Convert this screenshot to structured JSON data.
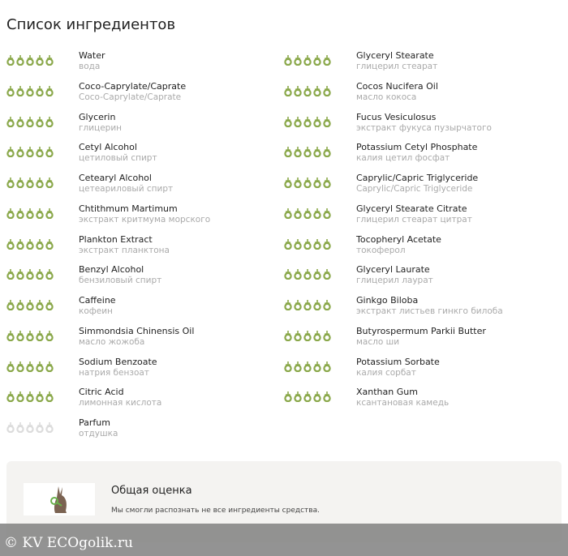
{
  "title": "Список ингредиентов",
  "colors": {
    "good": "#8aa84a",
    "unknown": "#dcdcdc"
  },
  "icon": "acorn-rating-icon",
  "left": [
    {
      "en": "Water",
      "ru": "вода",
      "rating": 5
    },
    {
      "en": "Coco-Caprylate/Caprate",
      "ru": "Coco-Caprylate/Caprate",
      "rating": 5
    },
    {
      "en": "Glycerin",
      "ru": "глицерин",
      "rating": 5
    },
    {
      "en": "Cetyl Alcohol",
      "ru": "цетиловый спирт",
      "rating": 5
    },
    {
      "en": "Cetearyl Alcohol",
      "ru": "цетеариловый спирт",
      "rating": 5
    },
    {
      "en": "Chtithmum Martimum",
      "ru": "экстракт критмума морского",
      "rating": 5
    },
    {
      "en": "Plankton Extract",
      "ru": "экстракт планктона",
      "rating": 5
    },
    {
      "en": "Benzyl Alcohol",
      "ru": "бензиловый спирт",
      "rating": 5
    },
    {
      "en": "Caffeine",
      "ru": "кофеин",
      "rating": 5
    },
    {
      "en": "Simmondsia Chinensis Oil",
      "ru": "масло жожоба",
      "rating": 5
    },
    {
      "en": "Sodium Benzoate",
      "ru": "натрия бензоат",
      "rating": 5
    },
    {
      "en": "Citric Acid",
      "ru": "лимонная кислота",
      "rating": 5
    },
    {
      "en": "Parfum",
      "ru": "отдушка",
      "rating": 0
    }
  ],
  "right": [
    {
      "en": "Glyceryl Stearate",
      "ru": "глицерил стеарат",
      "rating": 5
    },
    {
      "en": "Cocos Nucifera Oil",
      "ru": "масло кокоса",
      "rating": 5
    },
    {
      "en": "Fucus Vesiculosus",
      "ru": "экстракт фукуса пузырчатого",
      "rating": 5
    },
    {
      "en": "Potassium Cetyl Phosphate",
      "ru": "калия цетил фосфат",
      "rating": 5
    },
    {
      "en": "Caprylic/Capric Triglyceride",
      "ru": "Caprylic/Capric Triglyceride",
      "rating": 5
    },
    {
      "en": "Glyceryl Stearate Citrate",
      "ru": "глицерил стеарат цитрат",
      "rating": 5
    },
    {
      "en": "Tocopheryl Acetate",
      "ru": "токоферол",
      "rating": 5
    },
    {
      "en": "Glyceryl Laurate",
      "ru": "глицерил лаурат",
      "rating": 5
    },
    {
      "en": "Ginkgo Biloba",
      "ru": "экстракт листьев гинкго билоба",
      "rating": 5
    },
    {
      "en": "Butyrospermum Parkii Butter",
      "ru": "масло ши",
      "rating": 5
    },
    {
      "en": "Potassium Sorbate",
      "ru": "калия сорбат",
      "rating": 5
    },
    {
      "en": "Xanthan Gum",
      "ru": "ксантановая камедь",
      "rating": 5
    }
  ],
  "summary": {
    "title": "Общая оценка",
    "text": "Мы смогли распознать не все ингредиенты средства."
  },
  "watermark": "© KV  ECOgolik.ru"
}
